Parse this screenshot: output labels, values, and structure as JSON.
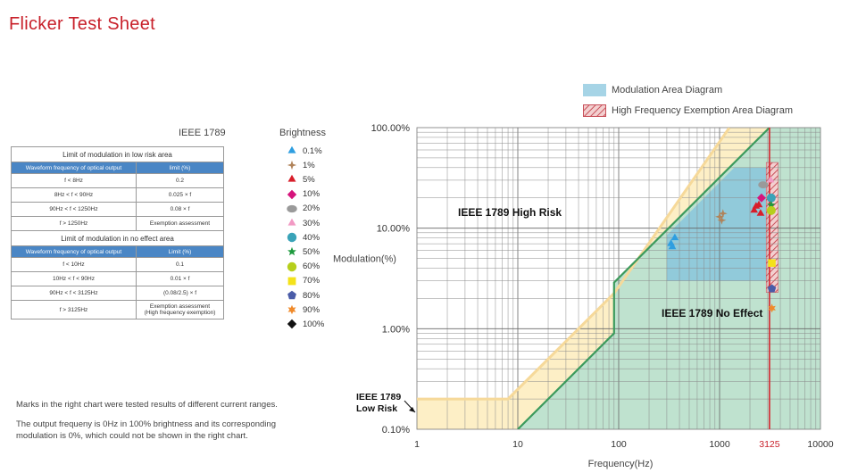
{
  "page": {
    "title": "Flicker Test Sheet"
  },
  "ieee_table": {
    "heading": "IEEE 1789",
    "low_risk_title": "Limit of modulation in low risk area",
    "no_effect_title": "Limit of modulation in no effect area",
    "col_freq": "Waveform frequency of optical output",
    "col_limit": "limit (%)",
    "col_limit2": "Limit (%)",
    "low_risk_rows": [
      {
        "freq": "f < 8Hz",
        "limit": "0.2"
      },
      {
        "freq": "8Hz < f < 90Hz",
        "limit": "0.025 × f"
      },
      {
        "freq": "90Hz < f < 1250Hz",
        "limit": "0.08 × f"
      },
      {
        "freq": "f > 1250Hz",
        "limit": "Exemption assessment"
      }
    ],
    "no_effect_rows": [
      {
        "freq": "f < 10Hz",
        "limit": "0.1"
      },
      {
        "freq": "10Hz < f < 90Hz",
        "limit": "0.01 × f"
      },
      {
        "freq": "90Hz < f < 3125Hz",
        "limit": "(0.08/2.5) × f"
      },
      {
        "freq": "f > 3125Hz",
        "limit": "Exemption assessment",
        "limit2": "(High frequency exemption)"
      }
    ]
  },
  "brightness": {
    "title": "Brightness",
    "items": [
      {
        "label": "0.1%",
        "shape": "triangle",
        "color": "#2e9ee0"
      },
      {
        "label": "1%",
        "shape": "star4",
        "color": "#b0835a"
      },
      {
        "label": "5%",
        "shape": "triangle",
        "color": "#d81e2a"
      },
      {
        "label": "10%",
        "shape": "diamond",
        "color": "#d6147c"
      },
      {
        "label": "20%",
        "shape": "ellipse",
        "color": "#9a9a9a"
      },
      {
        "label": "30%",
        "shape": "triangle",
        "color": "#f29ac4"
      },
      {
        "label": "40%",
        "shape": "circle",
        "color": "#3aa3b8"
      },
      {
        "label": "50%",
        "shape": "star5",
        "color": "#1e9a3e"
      },
      {
        "label": "60%",
        "shape": "circle",
        "color": "#b6cf1c"
      },
      {
        "label": "70%",
        "shape": "square",
        "color": "#f4e21a"
      },
      {
        "label": "80%",
        "shape": "pentagon",
        "color": "#4a5ca8"
      },
      {
        "label": "90%",
        "shape": "star6",
        "color": "#f08a2a"
      },
      {
        "label": "100%",
        "shape": "diamond",
        "color": "#111111"
      }
    ]
  },
  "notes": {
    "line1": "Marks in the right chart were tested results of different current ranges.",
    "line2": "The output frequeny is 0Hz in 100% brightness and its corresponding",
    "line3": "modulation is 0%, which could not be shown in the right chart."
  },
  "chart_data": {
    "type": "scatter",
    "xlabel": "Frequency(Hz)",
    "ylabel": "Modulation(%)",
    "x_scale": "log",
    "y_scale": "log",
    "xlim": [
      1,
      10000
    ],
    "ylim": [
      0.1,
      100
    ],
    "x_ticks": [
      "1",
      "10",
      "100",
      "1000",
      "3125",
      "10000"
    ],
    "y_ticks": [
      "0.10%",
      "1.00%",
      "10.00%",
      "100.00%"
    ],
    "grid": true,
    "legend": [
      {
        "label": "Modulation Area Diagram",
        "color": "#a6d4e6"
      },
      {
        "label": "High Frequency Exemption Area Diagram",
        "color": "#c8505a"
      }
    ],
    "annotations": {
      "high_risk": "IEEE 1789 High Risk",
      "no_effect": "IEEE 1789 No Effect",
      "low_risk": "IEEE 1789\nLow Risk",
      "low_risk_line1": "IEEE 1789",
      "low_risk_line2": "Low Risk"
    },
    "boundaries": {
      "low_risk_limit": [
        [
          1,
          0.2
        ],
        [
          8,
          0.2
        ],
        [
          90,
          2.25
        ],
        [
          1250,
          100
        ]
      ],
      "no_effect_limit": [
        [
          10,
          0.1
        ],
        [
          90,
          0.9
        ],
        [
          90,
          2.88
        ],
        [
          3125,
          100
        ]
      ],
      "high_frequency_exemption_x": 3125
    },
    "modulation_area": {
      "x": [
        300,
        3125
      ],
      "y": [
        3,
        40
      ]
    },
    "exemption_band": {
      "x": [
        2900,
        3800
      ],
      "y": [
        2.3,
        45
      ]
    },
    "series": [
      {
        "name": "0.1%",
        "points": [
          [
            330,
            7
          ],
          [
            360,
            8
          ],
          [
            340,
            6.5
          ]
        ]
      },
      {
        "name": "1%",
        "points": [
          [
            1000,
            13
          ],
          [
            1080,
            14
          ],
          [
            1050,
            12
          ]
        ]
      },
      {
        "name": "5%",
        "points": [
          [
            2200,
            15
          ],
          [
            2450,
            17
          ],
          [
            2550,
            14
          ],
          [
            2300,
            16.5
          ]
        ]
      },
      {
        "name": "10%",
        "points": [
          [
            2600,
            20
          ]
        ]
      },
      {
        "name": "20%",
        "points": [
          [
            2700,
            27
          ]
        ]
      },
      {
        "name": "30%",
        "points": [
          [
            3200,
            30
          ]
        ]
      },
      {
        "name": "40%",
        "points": [
          [
            3250,
            20
          ]
        ]
      },
      {
        "name": "50%",
        "points": [
          [
            3250,
            17
          ]
        ]
      },
      {
        "name": "60%",
        "points": [
          [
            3250,
            15
          ]
        ]
      },
      {
        "name": "70%",
        "points": [
          [
            3300,
            4.5
          ]
        ]
      },
      {
        "name": "80%",
        "points": [
          [
            3300,
            2.5
          ]
        ]
      },
      {
        "name": "90%",
        "points": [
          [
            3300,
            1.6
          ]
        ]
      }
    ]
  }
}
